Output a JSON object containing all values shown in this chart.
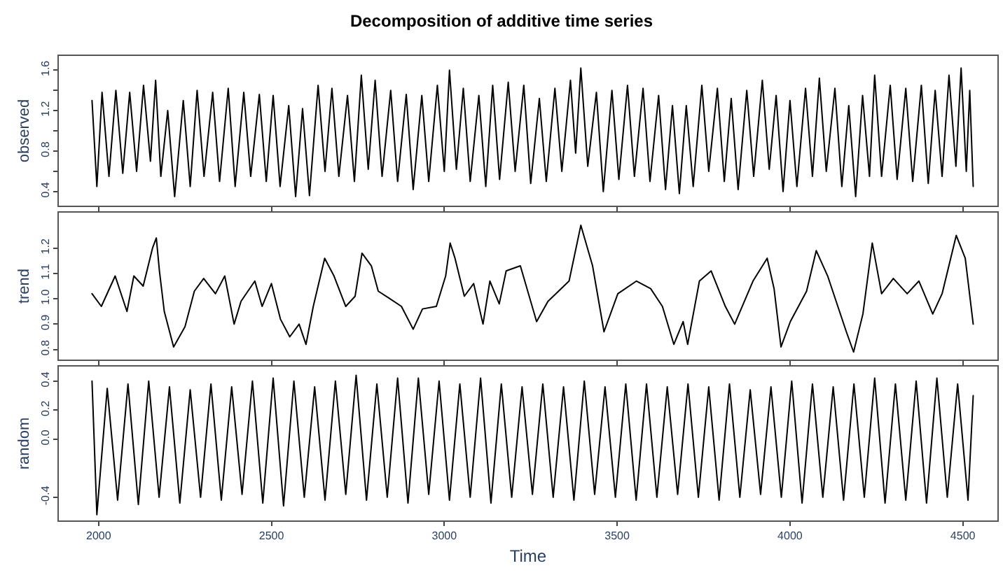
{
  "chart_data": [
    {
      "type": "line",
      "title": "Decomposition of additive time series",
      "ylabel": "observed",
      "color": "#000000",
      "tick_labels": "y",
      "xlim": [
        1885,
        4600
      ],
      "xticks": [
        2000,
        2500,
        3000,
        3500,
        4000,
        4500
      ],
      "ylim": [
        0.26,
        1.74
      ],
      "yticks": [
        0.4,
        {
          "value": 0.6,
          "label": null
        },
        0.8,
        {
          "value": 1.0,
          "label": null
        },
        1.2,
        {
          "value": 1.4,
          "label": null
        },
        1.6
      ],
      "x": [
        1981,
        1995,
        2010,
        2030,
        2050,
        2070,
        2090,
        2110,
        2130,
        2150,
        2165,
        2180,
        2200,
        2220,
        2245,
        2265,
        2285,
        2305,
        2330,
        2350,
        2375,
        2395,
        2420,
        2440,
        2465,
        2485,
        2505,
        2525,
        2550,
        2570,
        2590,
        2610,
        2635,
        2655,
        2675,
        2695,
        2720,
        2740,
        2760,
        2780,
        2800,
        2820,
        2845,
        2865,
        2890,
        2910,
        2935,
        2955,
        2980,
        3000,
        3015,
        3035,
        3055,
        3075,
        3100,
        3120,
        3140,
        3160,
        3185,
        3205,
        3230,
        3250,
        3275,
        3295,
        3320,
        3340,
        3365,
        3380,
        3395,
        3415,
        3440,
        3460,
        3485,
        3505,
        3530,
        3550,
        3575,
        3595,
        3620,
        3640,
        3660,
        3680,
        3700,
        3720,
        3745,
        3765,
        3790,
        3810,
        3830,
        3850,
        3875,
        3895,
        3920,
        3940,
        3960,
        3980,
        4000,
        4020,
        4045,
        4065,
        4085,
        4105,
        4130,
        4150,
        4170,
        4190,
        4210,
        4230,
        4245,
        4265,
        4290,
        4310,
        4335,
        4355,
        4380,
        4400,
        4420,
        4440,
        4460,
        4480,
        4495,
        4510,
        4520,
        4530
      ],
      "values": [
        1.3,
        0.45,
        1.38,
        0.55,
        1.4,
        0.58,
        1.38,
        0.6,
        1.45,
        0.7,
        1.5,
        0.55,
        1.2,
        0.35,
        1.3,
        0.45,
        1.4,
        0.55,
        1.38,
        0.5,
        1.42,
        0.45,
        1.38,
        0.55,
        1.36,
        0.5,
        1.35,
        0.45,
        1.25,
        0.35,
        1.22,
        0.36,
        1.45,
        0.6,
        1.42,
        0.55,
        1.35,
        0.5,
        1.55,
        0.62,
        1.5,
        0.55,
        1.4,
        0.5,
        1.36,
        0.42,
        1.35,
        0.5,
        1.45,
        0.6,
        1.6,
        0.62,
        1.42,
        0.5,
        1.35,
        0.45,
        1.45,
        0.52,
        1.48,
        0.6,
        1.45,
        0.48,
        1.32,
        0.5,
        1.42,
        0.6,
        1.5,
        0.78,
        1.62,
        0.65,
        1.38,
        0.4,
        1.4,
        0.52,
        1.45,
        0.55,
        1.42,
        0.5,
        1.35,
        0.42,
        1.25,
        0.38,
        1.25,
        0.45,
        1.45,
        0.6,
        1.42,
        0.5,
        1.32,
        0.42,
        1.4,
        0.55,
        1.5,
        0.62,
        1.35,
        0.4,
        1.3,
        0.45,
        1.42,
        0.55,
        1.52,
        0.6,
        1.42,
        0.45,
        1.25,
        0.35,
        1.35,
        0.55,
        1.55,
        0.55,
        1.45,
        0.52,
        1.42,
        0.5,
        1.45,
        0.48,
        1.4,
        0.55,
        1.55,
        0.65,
        1.62,
        0.6,
        1.4,
        0.45
      ]
    },
    {
      "type": "line",
      "ylabel": "trend",
      "color": "#000000",
      "tick_labels": "y",
      "xlim": [
        1885,
        4600
      ],
      "xticks": [
        2000,
        2500,
        3000,
        3500,
        4000,
        4500
      ],
      "ylim": [
        0.76,
        1.34
      ],
      "yticks": [
        0.8,
        0.9,
        {
          "value": 1.0,
          "label": "1.0"
        },
        1.1,
        1.2
      ],
      "x": [
        1981,
        2008,
        2048,
        2082,
        2102,
        2129,
        2156,
        2167,
        2176,
        2190,
        2217,
        2250,
        2277,
        2304,
        2338,
        2365,
        2392,
        2412,
        2452,
        2473,
        2500,
        2526,
        2553,
        2580,
        2600,
        2621,
        2654,
        2681,
        2715,
        2742,
        2762,
        2789,
        2809,
        2843,
        2876,
        2910,
        2937,
        2977,
        3004,
        3017,
        3031,
        3058,
        3085,
        3112,
        3132,
        3159,
        3179,
        3220,
        3267,
        3300,
        3361,
        3395,
        3429,
        3462,
        3502,
        3556,
        3597,
        3631,
        3664,
        3691,
        3704,
        3738,
        3772,
        3813,
        3840,
        3893,
        3934,
        3954,
        3974,
        4001,
        4048,
        4076,
        4109,
        4163,
        4184,
        4211,
        4238,
        4265,
        4299,
        4339,
        4373,
        4413,
        4440,
        4481,
        4507,
        4530
      ],
      "values": [
        1.02,
        0.97,
        1.09,
        0.95,
        1.09,
        1.05,
        1.2,
        1.24,
        1.11,
        0.95,
        0.81,
        0.89,
        1.03,
        1.08,
        1.02,
        1.09,
        0.9,
        0.99,
        1.07,
        0.97,
        1.06,
        0.92,
        0.85,
        0.9,
        0.82,
        0.97,
        1.16,
        1.09,
        0.97,
        1.01,
        1.18,
        1.13,
        1.03,
        1.0,
        0.97,
        0.88,
        0.96,
        0.97,
        1.09,
        1.22,
        1.16,
        1.01,
        1.06,
        0.9,
        1.07,
        0.98,
        1.11,
        1.13,
        0.91,
        0.99,
        1.07,
        1.29,
        1.13,
        0.87,
        1.02,
        1.07,
        1.04,
        0.97,
        0.82,
        0.91,
        0.82,
        1.07,
        1.11,
        0.97,
        0.9,
        1.07,
        1.16,
        1.04,
        0.81,
        0.91,
        1.03,
        1.19,
        1.09,
        0.87,
        0.79,
        0.94,
        1.22,
        1.02,
        1.08,
        1.02,
        1.07,
        0.94,
        1.02,
        1.25,
        1.16,
        0.9
      ]
    },
    {
      "type": "line",
      "ylabel": "random",
      "xlabel": "Time",
      "color": "#000000",
      "xlim": [
        1885,
        4600
      ],
      "xticks": [
        2000,
        2500,
        3000,
        3500,
        4000,
        4500
      ],
      "ylim": [
        -0.56,
        0.5
      ],
      "yticks": [
        -0.4,
        {
          "value": 0.0,
          "label": "0.0"
        },
        0.2,
        0.4
      ],
      "x": [
        1981,
        1995,
        2025,
        2055,
        2085,
        2115,
        2145,
        2175,
        2205,
        2235,
        2265,
        2295,
        2325,
        2355,
        2385,
        2415,
        2445,
        2475,
        2505,
        2535,
        2565,
        2595,
        2625,
        2655,
        2685,
        2715,
        2745,
        2775,
        2805,
        2835,
        2865,
        2895,
        2925,
        2955,
        2985,
        3015,
        3045,
        3075,
        3105,
        3135,
        3165,
        3195,
        3225,
        3255,
        3285,
        3315,
        3345,
        3375,
        3405,
        3435,
        3465,
        3495,
        3525,
        3555,
        3585,
        3615,
        3645,
        3675,
        3705,
        3735,
        3765,
        3795,
        3825,
        3855,
        3885,
        3915,
        3945,
        3975,
        4005,
        4035,
        4065,
        4095,
        4125,
        4155,
        4185,
        4215,
        4245,
        4275,
        4305,
        4335,
        4365,
        4395,
        4425,
        4455,
        4485,
        4515,
        4530
      ],
      "values": [
        0.4,
        -0.52,
        0.35,
        -0.42,
        0.38,
        -0.45,
        0.4,
        -0.4,
        0.36,
        -0.44,
        0.34,
        -0.4,
        0.38,
        -0.42,
        0.36,
        -0.38,
        0.4,
        -0.44,
        0.42,
        -0.46,
        0.4,
        -0.4,
        0.36,
        -0.42,
        0.4,
        -0.38,
        0.44,
        -0.42,
        0.38,
        -0.4,
        0.42,
        -0.44,
        0.42,
        -0.38,
        0.4,
        -0.42,
        0.38,
        -0.4,
        0.42,
        -0.44,
        0.38,
        -0.4,
        0.36,
        -0.38,
        0.38,
        -0.4,
        0.36,
        -0.42,
        0.4,
        -0.38,
        0.36,
        -0.4,
        0.38,
        -0.42,
        0.38,
        -0.4,
        0.36,
        -0.38,
        0.38,
        -0.4,
        0.36,
        -0.42,
        0.38,
        -0.4,
        0.34,
        -0.38,
        0.36,
        -0.4,
        0.4,
        -0.44,
        0.38,
        -0.4,
        0.36,
        -0.42,
        0.38,
        -0.4,
        0.42,
        -0.44,
        0.38,
        -0.42,
        0.4,
        -0.44,
        0.42,
        -0.4,
        0.38,
        -0.42,
        0.3
      ]
    }
  ]
}
